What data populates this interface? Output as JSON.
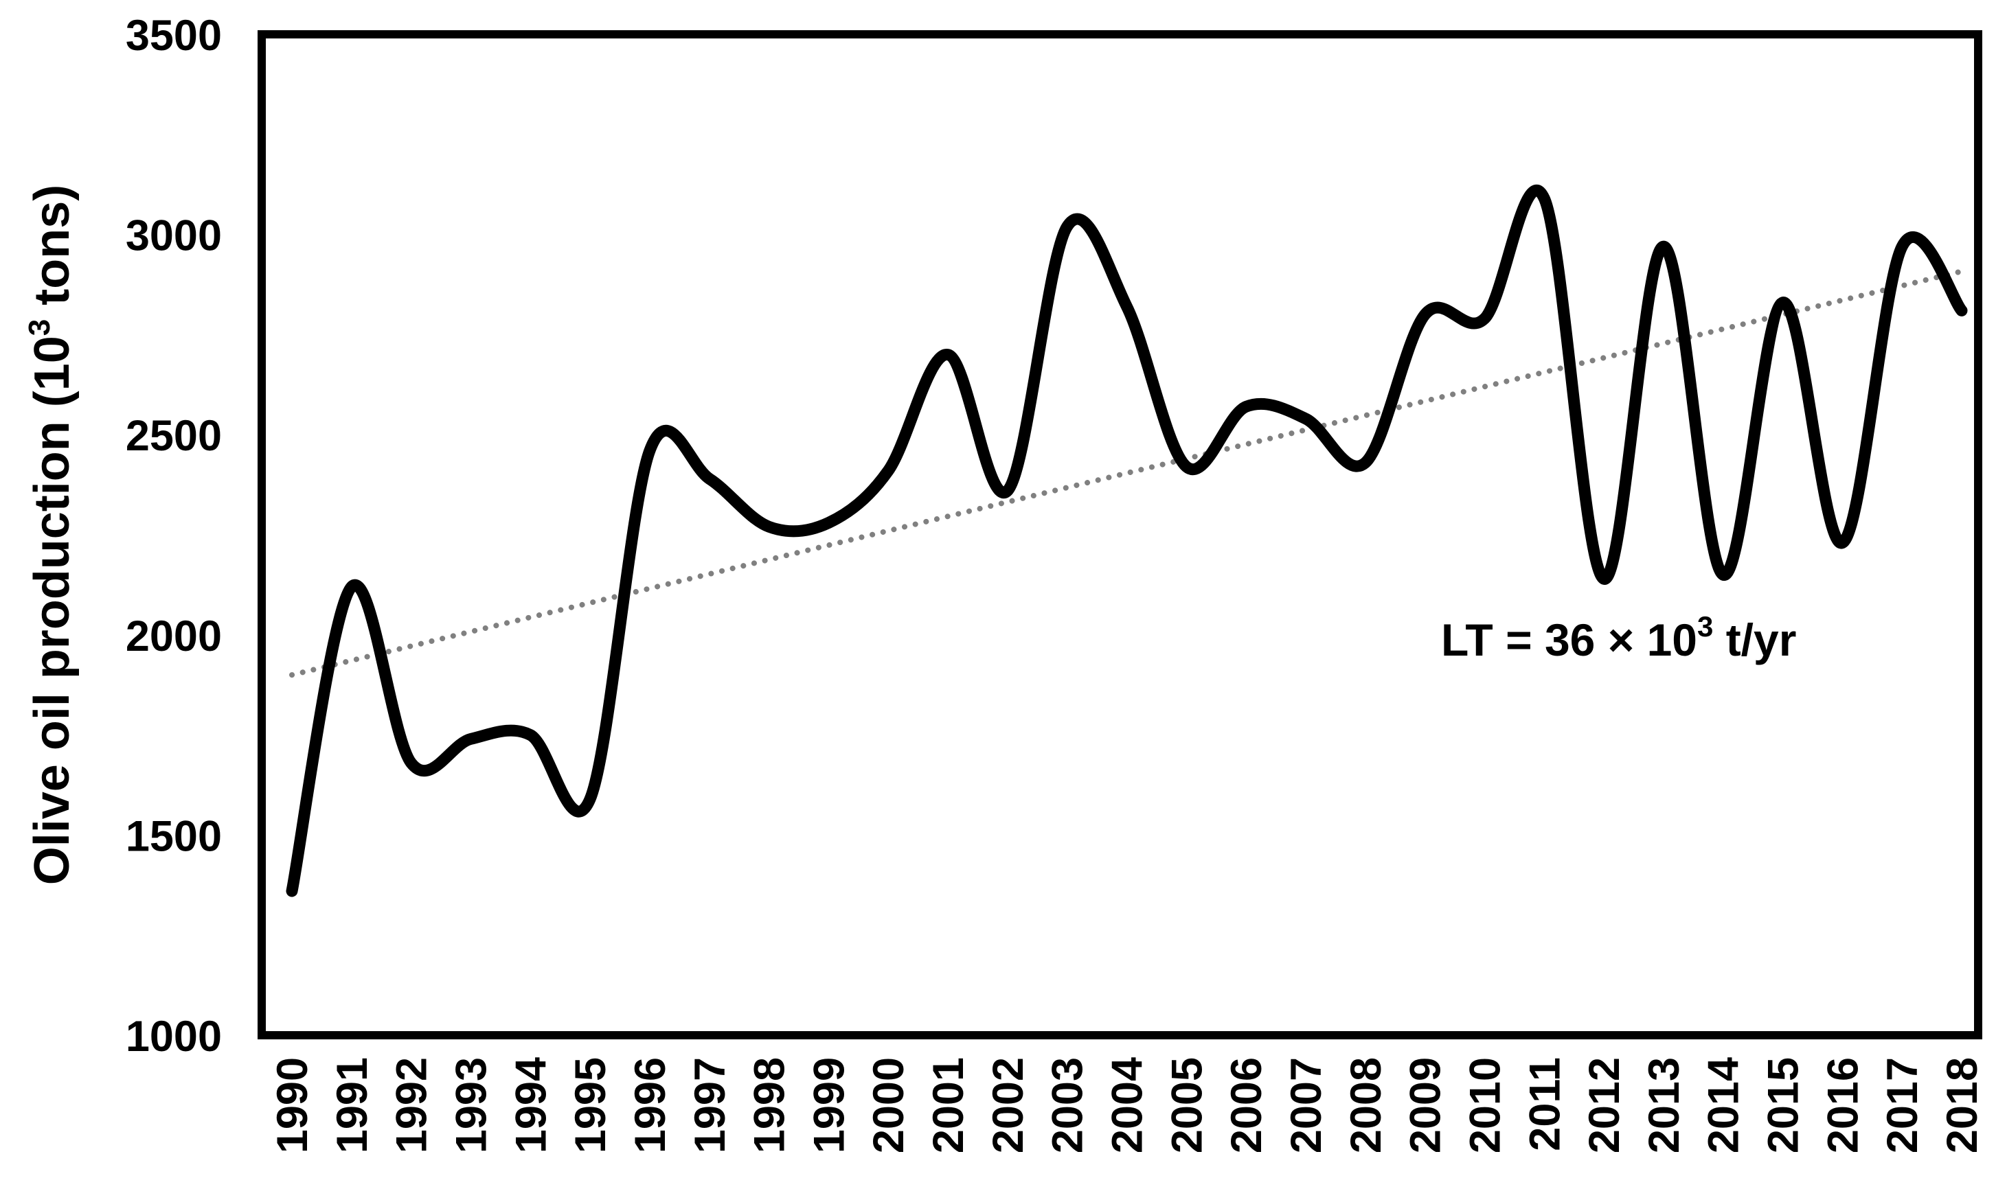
{
  "chart_data": {
    "type": "line",
    "title": "",
    "xlabel": "",
    "ylabel": {
      "base": "Olive oil production (10",
      "sup": "3",
      "tail": " tons)"
    },
    "ylim": [
      1000,
      3500
    ],
    "yticks": [
      1000,
      1500,
      2000,
      2500,
      3000,
      3500
    ],
    "ytick_labels": [
      "1000",
      "1500",
      "2000",
      "2500",
      "3000",
      "3500"
    ],
    "grid": false,
    "x": [
      "1990",
      "1991",
      "1992",
      "1993",
      "1994",
      "1995",
      "1996",
      "1997",
      "1998",
      "1999",
      "2000",
      "2001",
      "2002",
      "2003",
      "2004",
      "2005",
      "2006",
      "2007",
      "2008",
      "2009",
      "2010",
      "2011",
      "2012",
      "2013",
      "2014",
      "2015",
      "2016",
      "2017",
      "2018"
    ],
    "series": [
      {
        "name": "",
        "style": "solid",
        "color": "#000000",
        "values": [
          1360,
          2120,
          1680,
          1740,
          1750,
          1590,
          2460,
          2390,
          2270,
          2280,
          2410,
          2700,
          2360,
          3020,
          2820,
          2420,
          2570,
          2540,
          2430,
          2800,
          2790,
          3090,
          2140,
          2970,
          2150,
          2830,
          2230,
          2970,
          2810
        ]
      },
      {
        "name": "",
        "style": "dotted",
        "color": "#808080",
        "values": [
          1900,
          1936,
          1972,
          2008,
          2044,
          2080,
          2116,
          2152,
          2188,
          2224,
          2260,
          2296,
          2332,
          2368,
          2404,
          2440,
          2476,
          2512,
          2548,
          2584,
          2620,
          2656,
          2692,
          2728,
          2764,
          2800,
          2836,
          2872,
          2908
        ]
      }
    ],
    "annotation": {
      "prefix": "LT = 36 × 10",
      "sup": "3",
      "suffix": " t/yr"
    }
  }
}
